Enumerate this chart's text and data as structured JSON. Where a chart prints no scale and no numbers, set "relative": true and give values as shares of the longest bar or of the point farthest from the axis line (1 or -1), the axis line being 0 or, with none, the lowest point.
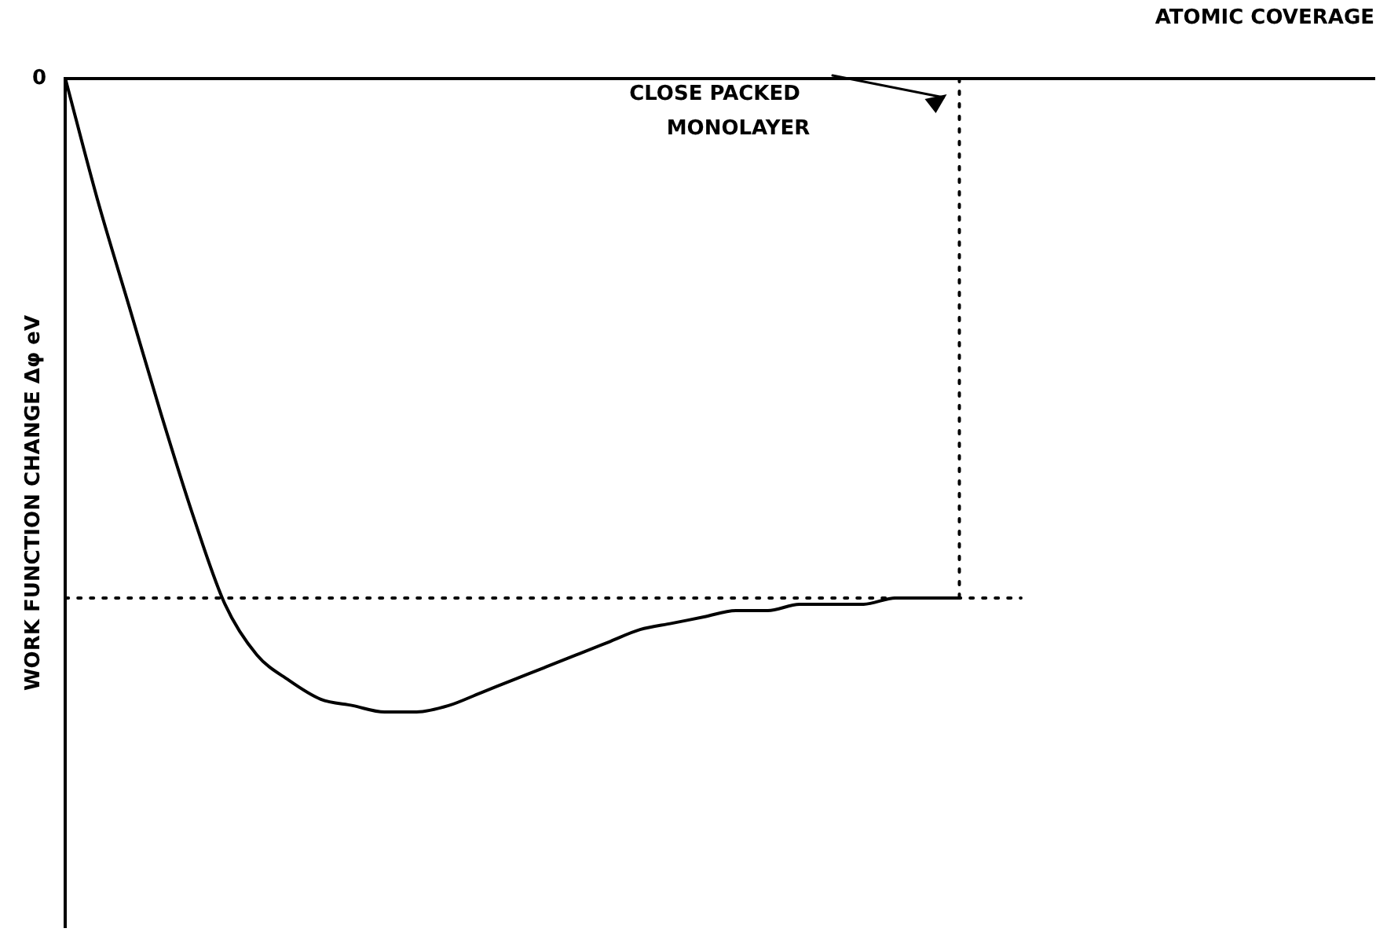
{
  "chart_data": {
    "type": "line",
    "xlabel": "ATOMIC COVERAGE",
    "ylabel": "WORK FUNCTION CHANGE Δφ eV",
    "relative": true,
    "categories": [
      null,
      null,
      null,
      null,
      null,
      null,
      null,
      null,
      null,
      null,
      null,
      null,
      null,
      null,
      null,
      null,
      null,
      null,
      null,
      null,
      null,
      null,
      null,
      null,
      null,
      null,
      null,
      null,
      null,
      null,
      null,
      null,
      null,
      null,
      null,
      null,
      null,
      null,
      null,
      null,
      null,
      null
    ],
    "series": [
      {
        "color": "#000000",
        "values": [
          0,
          -0.19,
          -0.36,
          -0.53,
          -0.69,
          -0.83,
          -0.91,
          -0.95,
          -0.98,
          -0.99,
          -1,
          -1,
          -0.99,
          -0.97,
          -0.95,
          -0.93,
          -0.91,
          -0.89,
          -0.87,
          -0.86,
          -0.85,
          -0.84,
          -0.84,
          -0.83,
          -0.83,
          -0.83,
          -0.82,
          -0.82,
          -0.82,
          null,
          null,
          null,
          null,
          null,
          null,
          null,
          null,
          null,
          null,
          null,
          null,
          null
        ]
      }
    ],
    "ref_lines": [
      {
        "axis": "y",
        "value": -0.82,
        "line_style": "dotted",
        "color": "#000000"
      }
    ],
    "annotations": [
      "0",
      "CLOSE PACKED\nMONOLAYER"
    ],
    "legend": false,
    "grid": false,
    "marker": "none",
    "line_style": "solid"
  }
}
